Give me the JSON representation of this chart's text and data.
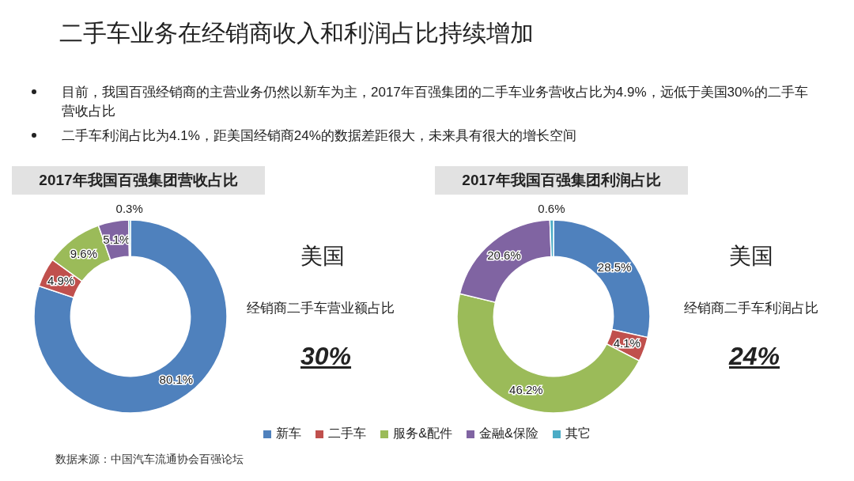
{
  "chart_data": [
    {
      "type": "donut",
      "title": "2017年我国百强集团营收占比",
      "categories": [
        "新车",
        "二手车",
        "服务&配件",
        "金融&保险",
        "其它"
      ],
      "values": [
        80.1,
        4.9,
        9.6,
        5.1,
        0.3
      ],
      "colors": [
        "#4f81bd",
        "#c0504d",
        "#9bbb59",
        "#8064a2",
        "#4bacc6"
      ],
      "value_labels": [
        "80.1%",
        "4.9%",
        "9.6%",
        "5.1%",
        "0.3%"
      ],
      "legend": "bottom",
      "annotations": [
        "二手车业务在经销商收入和利润占比持续增加",
        "目前，我国百强经销商的主营业务仍然以新车为主，2017年百强集团的二手车业务营收占比为4.9%，远低于美国30%的二手车营收占比",
        "二手车利润占比为4.1%，距美国经销商24%的数据差距很大，未来具有很大的增长空间",
        "美国",
        "经销商二手车营业额占比",
        "30%"
      ]
    },
    {
      "type": "donut",
      "title": "2017年我国百强集团利润占比",
      "values": [
        28.5,
        4.1,
        46.2,
        20.6,
        0.6
      ],
      "colors": [
        "#4f81bd",
        "#c0504d",
        "#9bbb59",
        "#8064a2",
        "#4bacc6"
      ],
      "value_labels": [
        "28.5%",
        "4.1%",
        "46.2%",
        "20.6%",
        "0.6%"
      ],
      "annotations": [
        "美国",
        "经销商二手车利润占比",
        "24%",
        "数据来源：中国汽车流通协会百强论坛"
      ]
    }
  ]
}
